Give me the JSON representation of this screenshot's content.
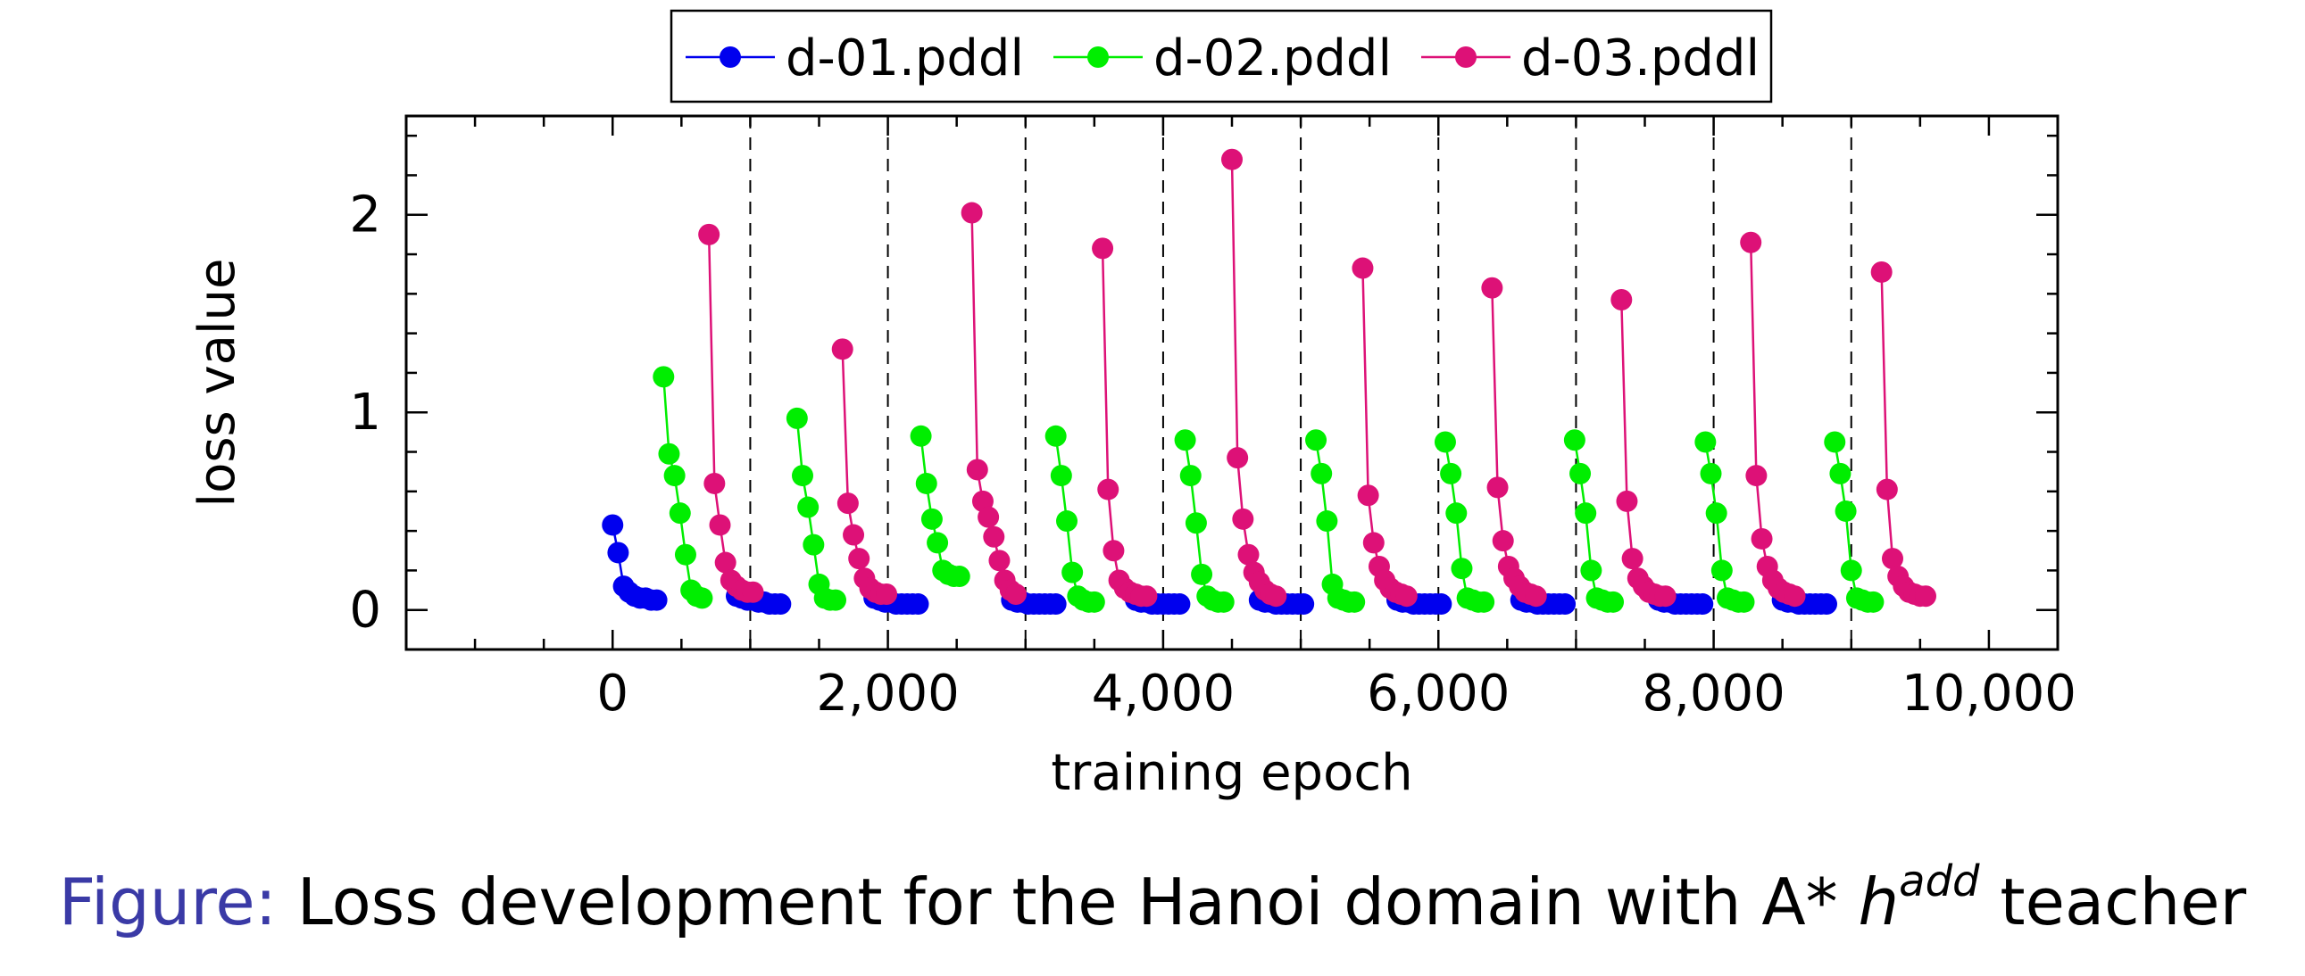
{
  "chart_data": {
    "type": "line",
    "xlabel": "training epoch",
    "ylabel": "loss value",
    "xlim": [
      -1500,
      10500
    ],
    "ylim": [
      -0.2,
      2.5
    ],
    "xticks": [
      0,
      2000,
      4000,
      6000,
      8000,
      10000
    ],
    "xtick_labels": [
      "0",
      "2,000",
      "4,000",
      "6,000",
      "8,000",
      "10,000"
    ],
    "yticks": [
      0,
      1,
      2
    ],
    "ytick_labels": [
      "0",
      "1",
      "2"
    ],
    "grid": false,
    "legend_position": "top-center",
    "dividers_x": [
      1000,
      2000,
      3000,
      4000,
      5000,
      6000,
      7000,
      8000,
      9000
    ],
    "series": [
      {
        "name": "d-01.pddl",
        "color": "#0000ee",
        "segments": [
          {
            "x": [
              0,
              40,
              80,
              120,
              160,
              200,
              240,
              280,
              320
            ],
            "y": [
              0.43,
              0.29,
              0.12,
              0.09,
              0.07,
              0.06,
              0.06,
              0.05,
              0.05
            ]
          },
          {
            "x": [
              900,
              940,
              980,
              1020,
              1060,
              1100,
              1140,
              1180,
              1220
            ],
            "y": [
              0.07,
              0.06,
              0.05,
              0.05,
              0.04,
              0.04,
              0.03,
              0.03,
              0.03
            ]
          },
          {
            "x": [
              1900,
              1940,
              1980,
              2020,
              2060,
              2100,
              2140,
              2180,
              2220
            ],
            "y": [
              0.06,
              0.05,
              0.04,
              0.04,
              0.03,
              0.03,
              0.03,
              0.03,
              0.03
            ]
          },
          {
            "x": [
              2900,
              2940,
              2980,
              3020,
              3060,
              3100,
              3140,
              3180,
              3220
            ],
            "y": [
              0.05,
              0.04,
              0.04,
              0.03,
              0.03,
              0.03,
              0.03,
              0.03,
              0.03
            ]
          },
          {
            "x": [
              3800,
              3840,
              3880,
              3920,
              3960,
              4000,
              4040,
              4080,
              4120
            ],
            "y": [
              0.05,
              0.04,
              0.04,
              0.03,
              0.03,
              0.03,
              0.03,
              0.03,
              0.03
            ]
          },
          {
            "x": [
              4700,
              4740,
              4780,
              4820,
              4860,
              4900,
              4940,
              4980,
              5020
            ],
            "y": [
              0.05,
              0.04,
              0.04,
              0.03,
              0.03,
              0.03,
              0.03,
              0.03,
              0.03
            ]
          },
          {
            "x": [
              5700,
              5740,
              5780,
              5820,
              5860,
              5900,
              5940,
              5980,
              6020
            ],
            "y": [
              0.05,
              0.04,
              0.04,
              0.03,
              0.03,
              0.03,
              0.03,
              0.03,
              0.03
            ]
          },
          {
            "x": [
              6600,
              6640,
              6680,
              6720,
              6760,
              6800,
              6840,
              6880,
              6920
            ],
            "y": [
              0.05,
              0.04,
              0.04,
              0.03,
              0.03,
              0.03,
              0.03,
              0.03,
              0.03
            ]
          },
          {
            "x": [
              7600,
              7640,
              7680,
              7720,
              7760,
              7800,
              7840,
              7880,
              7920
            ],
            "y": [
              0.05,
              0.04,
              0.04,
              0.03,
              0.03,
              0.03,
              0.03,
              0.03,
              0.03
            ]
          },
          {
            "x": [
              8500,
              8540,
              8580,
              8620,
              8660,
              8700,
              8740,
              8780,
              8820
            ],
            "y": [
              0.05,
              0.04,
              0.04,
              0.03,
              0.03,
              0.03,
              0.03,
              0.03,
              0.03
            ]
          }
        ]
      },
      {
        "name": "d-02.pddl",
        "color": "#00ee00",
        "segments": [
          {
            "x": [
              370,
              410,
              450,
              490,
              530,
              570,
              610,
              650
            ],
            "y": [
              1.18,
              0.79,
              0.68,
              0.49,
              0.28,
              0.1,
              0.07,
              0.06
            ]
          },
          {
            "x": [
              1340,
              1380,
              1420,
              1460,
              1500,
              1540,
              1580,
              1620
            ],
            "y": [
              0.97,
              0.68,
              0.52,
              0.33,
              0.13,
              0.06,
              0.05,
              0.05
            ]
          },
          {
            "x": [
              2240,
              2280,
              2320,
              2360,
              2400,
              2440,
              2480,
              2520
            ],
            "y": [
              0.88,
              0.64,
              0.46,
              0.34,
              0.2,
              0.18,
              0.17,
              0.17
            ]
          },
          {
            "x": [
              3220,
              3260,
              3300,
              3340,
              3380,
              3420,
              3460,
              3500
            ],
            "y": [
              0.88,
              0.68,
              0.45,
              0.19,
              0.07,
              0.05,
              0.04,
              0.04
            ]
          },
          {
            "x": [
              4160,
              4200,
              4240,
              4280,
              4320,
              4360,
              4400,
              4440
            ],
            "y": [
              0.86,
              0.68,
              0.44,
              0.18,
              0.07,
              0.05,
              0.04,
              0.04
            ]
          },
          {
            "x": [
              5110,
              5150,
              5190,
              5230,
              5270,
              5310,
              5350,
              5390
            ],
            "y": [
              0.86,
              0.69,
              0.45,
              0.13,
              0.06,
              0.05,
              0.04,
              0.04
            ]
          },
          {
            "x": [
              6050,
              6090,
              6130,
              6170,
              6210,
              6250,
              6290,
              6330
            ],
            "y": [
              0.85,
              0.69,
              0.49,
              0.21,
              0.06,
              0.05,
              0.04,
              0.04
            ]
          },
          {
            "x": [
              6990,
              7030,
              7070,
              7110,
              7150,
              7190,
              7230,
              7270
            ],
            "y": [
              0.86,
              0.69,
              0.49,
              0.2,
              0.06,
              0.05,
              0.04,
              0.04
            ]
          },
          {
            "x": [
              7940,
              7980,
              8020,
              8060,
              8100,
              8140,
              8180,
              8220
            ],
            "y": [
              0.85,
              0.69,
              0.49,
              0.2,
              0.06,
              0.05,
              0.04,
              0.04
            ]
          },
          {
            "x": [
              8880,
              8920,
              8960,
              9000,
              9040,
              9080,
              9120,
              9160
            ],
            "y": [
              0.85,
              0.69,
              0.5,
              0.2,
              0.06,
              0.05,
              0.04,
              0.04
            ]
          }
        ]
      },
      {
        "name": "d-03.pddl",
        "color": "#dd1177",
        "segments": [
          {
            "x": [
              700,
              740,
              780,
              820,
              860,
              900,
              940,
              980,
              1020
            ],
            "y": [
              1.9,
              0.64,
              0.43,
              0.24,
              0.15,
              0.12,
              0.1,
              0.09,
              0.09
            ]
          },
          {
            "x": [
              1670,
              1710,
              1750,
              1790,
              1830,
              1870,
              1910,
              1950,
              1990
            ],
            "y": [
              1.32,
              0.54,
              0.38,
              0.26,
              0.16,
              0.11,
              0.09,
              0.08,
              0.08
            ]
          },
          {
            "x": [
              2610,
              2650,
              2690,
              2730,
              2770,
              2810,
              2850,
              2890,
              2930
            ],
            "y": [
              2.01,
              0.71,
              0.55,
              0.47,
              0.37,
              0.25,
              0.15,
              0.1,
              0.08
            ]
          },
          {
            "x": [
              3560,
              3600,
              3640,
              3680,
              3720,
              3760,
              3800,
              3840,
              3880
            ],
            "y": [
              1.83,
              0.61,
              0.3,
              0.15,
              0.11,
              0.09,
              0.08,
              0.07,
              0.07
            ]
          },
          {
            "x": [
              4500,
              4540,
              4580,
              4620,
              4660,
              4700,
              4740,
              4780,
              4820
            ],
            "y": [
              2.28,
              0.77,
              0.46,
              0.28,
              0.19,
              0.14,
              0.1,
              0.08,
              0.07
            ]
          },
          {
            "x": [
              5450,
              5490,
              5530,
              5570,
              5610,
              5650,
              5690,
              5730,
              5770
            ],
            "y": [
              1.73,
              0.58,
              0.34,
              0.22,
              0.15,
              0.11,
              0.09,
              0.08,
              0.07
            ]
          },
          {
            "x": [
              6390,
              6430,
              6470,
              6510,
              6550,
              6590,
              6630,
              6670,
              6710
            ],
            "y": [
              1.63,
              0.62,
              0.35,
              0.22,
              0.16,
              0.12,
              0.09,
              0.08,
              0.07
            ]
          },
          {
            "x": [
              7330,
              7370,
              7410,
              7450,
              7490,
              7530,
              7570,
              7610,
              7650
            ],
            "y": [
              1.57,
              0.55,
              0.26,
              0.16,
              0.12,
              0.09,
              0.08,
              0.07,
              0.07
            ]
          },
          {
            "x": [
              8270,
              8310,
              8350,
              8390,
              8430,
              8470,
              8510,
              8550,
              8590
            ],
            "y": [
              1.86,
              0.68,
              0.36,
              0.22,
              0.15,
              0.11,
              0.09,
              0.08,
              0.07
            ]
          },
          {
            "x": [
              9220,
              9260,
              9300,
              9340,
              9380,
              9420,
              9460,
              9500,
              9540
            ],
            "y": [
              1.71,
              0.61,
              0.26,
              0.17,
              0.12,
              0.09,
              0.08,
              0.07,
              0.07
            ]
          }
        ]
      }
    ]
  },
  "caption": {
    "prefix": "Figure:",
    "text": "Loss development for the Hanoi domain with A",
    "star": "*",
    "h": "h",
    "superscript": "add",
    "suffix": "teacher"
  }
}
